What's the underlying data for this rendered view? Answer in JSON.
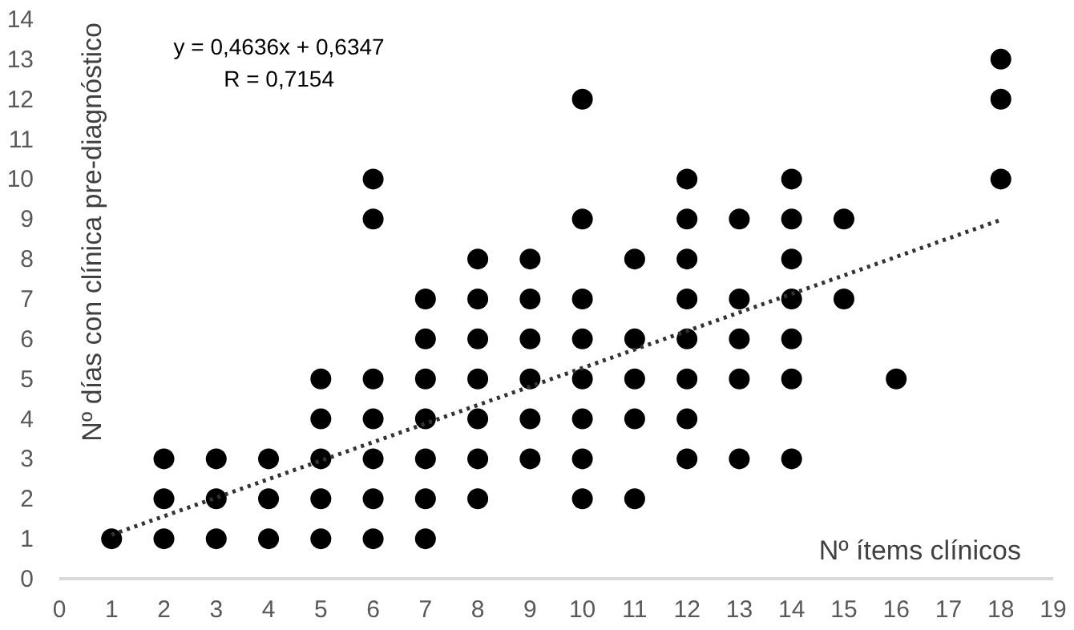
{
  "chart_data": {
    "type": "scatter",
    "xlabel": "Nº ítems clínicos",
    "ylabel": "Nº días con clínica pre-diagnóstico",
    "annotations": [
      "y = 0,4636x + 0,6347",
      "R = 0,7154"
    ],
    "xlim": [
      0,
      19
    ],
    "xticks": [
      0,
      1,
      2,
      3,
      4,
      5,
      6,
      7,
      8,
      9,
      10,
      11,
      12,
      13,
      14,
      15,
      16,
      17,
      18,
      19
    ],
    "ylim": [
      0,
      14
    ],
    "yticks": [
      0,
      1,
      2,
      3,
      4,
      5,
      6,
      7,
      8,
      9,
      10,
      11,
      12,
      13,
      14
    ],
    "grid": false,
    "marker": "circle",
    "series": [
      {
        "color": "#000000",
        "x": [
          1,
          2,
          2,
          2,
          3,
          3,
          3,
          4,
          4,
          4,
          5,
          5,
          5,
          5,
          5,
          6,
          6,
          6,
          6,
          6,
          6,
          6,
          7,
          7,
          7,
          7,
          7,
          7,
          7,
          8,
          8,
          8,
          8,
          8,
          8,
          8,
          9,
          9,
          9,
          9,
          9,
          9,
          10,
          10,
          10,
          10,
          10,
          10,
          10,
          10,
          11,
          11,
          11,
          11,
          11,
          12,
          12,
          12,
          12,
          12,
          12,
          12,
          12,
          13,
          13,
          13,
          13,
          13,
          14,
          14,
          14,
          14,
          14,
          14,
          14,
          15,
          15,
          16,
          18,
          18,
          18
        ],
        "values": [
          1,
          1,
          2,
          3,
          1,
          2,
          3,
          1,
          2,
          3,
          1,
          2,
          3,
          4,
          5,
          1,
          2,
          3,
          4,
          5,
          9,
          10,
          1,
          2,
          3,
          4,
          5,
          6,
          7,
          2,
          3,
          4,
          5,
          6,
          7,
          8,
          3,
          4,
          5,
          6,
          7,
          8,
          2,
          3,
          4,
          5,
          6,
          7,
          9,
          12,
          2,
          4,
          5,
          6,
          8,
          3,
          4,
          5,
          6,
          7,
          8,
          9,
          10,
          3,
          5,
          6,
          7,
          9,
          3,
          5,
          6,
          7,
          8,
          9,
          10,
          7,
          9,
          5,
          10,
          12,
          13
        ]
      },
      {
        "type": "line",
        "color": "#333333",
        "line_style": "dotted",
        "marker": "none",
        "x": [
          1,
          18
        ],
        "values": [
          1.1,
          8.98
        ]
      }
    ]
  }
}
